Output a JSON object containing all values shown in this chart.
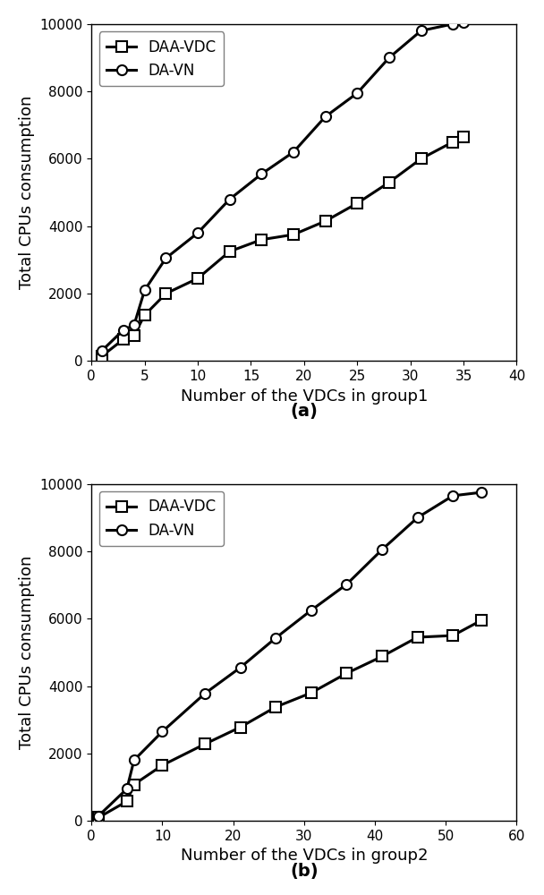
{
  "chart_a": {
    "xlabel": "Number of the VDCs in group1",
    "ylabel": "Total CPUs consumption",
    "xlim": [
      0,
      40
    ],
    "ylim": [
      0,
      10000
    ],
    "xticks": [
      0,
      5,
      10,
      15,
      20,
      25,
      30,
      35,
      40
    ],
    "yticks": [
      0,
      2000,
      4000,
      6000,
      8000,
      10000
    ],
    "daa_vdc_x": [
      1,
      3,
      4,
      5,
      7,
      10,
      13,
      16,
      19,
      22,
      25,
      28,
      31,
      34,
      35
    ],
    "daa_vdc_y": [
      150,
      640,
      760,
      1360,
      2000,
      2450,
      3250,
      3600,
      3750,
      4150,
      4680,
      5300,
      6000,
      6500,
      6650
    ],
    "da_vn_x": [
      1,
      3,
      4,
      5,
      7,
      10,
      13,
      16,
      19,
      22,
      25,
      28,
      31,
      34,
      35
    ],
    "da_vn_y": [
      310,
      920,
      1060,
      2100,
      3050,
      3800,
      4800,
      5550,
      6200,
      7250,
      7950,
      9000,
      9800,
      10000,
      10050
    ],
    "label": "(a)"
  },
  "chart_b": {
    "xlabel": "Number of the VDCs in group2",
    "ylabel": "Total CPUs consumption",
    "xlim": [
      0,
      60
    ],
    "ylim": [
      0,
      10000
    ],
    "xticks": [
      0,
      10,
      20,
      30,
      40,
      50,
      60
    ],
    "yticks": [
      0,
      2000,
      4000,
      6000,
      8000,
      10000
    ],
    "daa_vdc_x": [
      1,
      5,
      6,
      10,
      16,
      21,
      26,
      31,
      36,
      41,
      46,
      51,
      55
    ],
    "daa_vdc_y": [
      100,
      580,
      1080,
      1650,
      2280,
      2780,
      3380,
      3800,
      4380,
      4880,
      5450,
      5500,
      5950
    ],
    "da_vn_x": [
      1,
      5,
      6,
      10,
      16,
      21,
      26,
      31,
      36,
      41,
      46,
      51,
      55
    ],
    "da_vn_y": [
      150,
      950,
      1800,
      2650,
      3780,
      4550,
      5430,
      6250,
      7020,
      8050,
      9000,
      9650,
      9750
    ],
    "label": "(b)"
  },
  "legend_daa_vdc": "DAA-VDC",
  "legend_da_vn": "DA-VN",
  "line_color": "#000000",
  "marker_square": "s",
  "marker_circle": "o",
  "marker_size": 8,
  "line_width": 2.2,
  "font_size": 12,
  "label_font_size": 13,
  "tick_font_size": 11
}
